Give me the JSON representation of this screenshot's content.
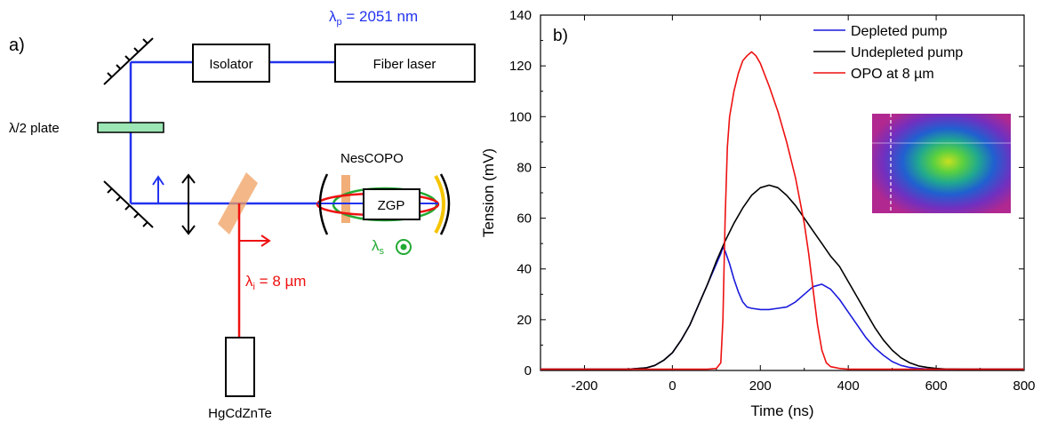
{
  "panel_a": {
    "label": "a)",
    "pump_prefix": "λ",
    "pump_sub": "p",
    "pump_value": " = 2051 nm",
    "isolator": "Isolator",
    "fiber_laser": "Fiber laser",
    "half_wave": "λ/2 plate",
    "cavity": "NesCOPO",
    "crystal": "ZGP",
    "signal_prefix": "λ",
    "signal_sub": "s",
    "idler_prefix": "λ",
    "idler_sub": "i",
    "idler_value": " = 8 µm",
    "detector": "HgCdZnTe",
    "colors": {
      "pump": "#2233ee",
      "idler": "#ee1111",
      "signal": "#22aa33",
      "mirror_coat": "#f5c400",
      "plate": "#9be6b4",
      "dichroic": "#f0a060"
    }
  },
  "chart_data": {
    "type": "line",
    "panel_label": "b)",
    "xlabel": "Time (ns)",
    "ylabel": "Tension (mV)",
    "xlim": [
      -300,
      800
    ],
    "ylim": [
      0,
      140
    ],
    "xticks": [
      -200,
      0,
      200,
      400,
      600,
      800
    ],
    "yticks": [
      0,
      20,
      40,
      60,
      80,
      100,
      120,
      140
    ],
    "legend_position": "top-right",
    "legend": [
      "Depleted pump",
      "Undepleted pump",
      "OPO at 8 µm"
    ],
    "series": [
      {
        "name": "Depleted pump",
        "color": "#1a1adc",
        "x": [
          -300,
          -100,
          -60,
          -40,
          -20,
          0,
          20,
          40,
          60,
          80,
          100,
          110,
          115,
          120,
          130,
          140,
          150,
          160,
          170,
          180,
          200,
          220,
          240,
          260,
          280,
          300,
          320,
          340,
          360,
          380,
          400,
          420,
          440,
          460,
          480,
          500,
          520,
          540,
          560,
          580,
          600,
          640,
          800
        ],
        "y": [
          0.5,
          0.5,
          1,
          2,
          4,
          7,
          12,
          18,
          26,
          34,
          42,
          46,
          48.5,
          47,
          42,
          36,
          31,
          27,
          25,
          24.5,
          24,
          24,
          24.5,
          25,
          27,
          30,
          33,
          34,
          32,
          28,
          23,
          18,
          13,
          9,
          6,
          3.5,
          2,
          1.2,
          0.8,
          0.6,
          0.5,
          0.5,
          0.5
        ]
      },
      {
        "name": "Undepleted pump",
        "color": "#000000",
        "x": [
          -300,
          -100,
          -60,
          -40,
          -20,
          0,
          20,
          40,
          60,
          80,
          100,
          120,
          140,
          160,
          180,
          200,
          220,
          240,
          260,
          280,
          300,
          320,
          340,
          360,
          380,
          400,
          420,
          440,
          460,
          480,
          500,
          520,
          540,
          560,
          580,
          600,
          620,
          660,
          800
        ],
        "y": [
          0.5,
          0.5,
          1,
          2,
          4,
          7,
          12,
          18,
          26,
          34,
          43,
          51,
          58,
          64,
          69,
          72,
          73,
          72,
          69,
          65,
          60,
          55,
          50,
          45,
          41,
          35,
          29,
          23,
          17,
          12,
          8,
          5,
          3,
          1.8,
          1.2,
          0.8,
          0.6,
          0.5,
          0.5
        ]
      },
      {
        "name": "OPO at 8 µm",
        "color": "#ee1111",
        "x": [
          -300,
          0,
          80,
          100,
          110,
          115,
          120,
          125,
          130,
          140,
          150,
          160,
          170,
          180,
          190,
          200,
          220,
          240,
          260,
          280,
          300,
          310,
          320,
          330,
          340,
          350,
          360,
          380,
          400,
          800
        ],
        "y": [
          0.5,
          0.5,
          0.5,
          0.8,
          3,
          20,
          60,
          88,
          100,
          110,
          117,
          122,
          124,
          125.5,
          124,
          121,
          112,
          102,
          90,
          76,
          58,
          46,
          32,
          18,
          8,
          3,
          1.5,
          0.8,
          0.5,
          0.5
        ]
      }
    ]
  }
}
